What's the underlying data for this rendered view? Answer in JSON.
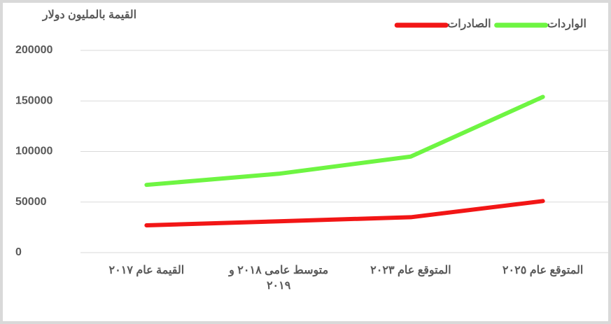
{
  "chart_data": {
    "type": "line",
    "title": "القيمة بالمليون دولار",
    "categories": [
      "القيمة عام ٢٠١٧",
      "متوسط عامى ٢٠١٨ و ٢٠١٩",
      "المتوقع عام ٢٠٢٣",
      "المتوقع عام ٢٠٢٥"
    ],
    "series": [
      {
        "name": "الواردات",
        "color": "#6ef542",
        "values": [
          67000,
          78000,
          95000,
          154000
        ]
      },
      {
        "name": "الصادرات",
        "color": "#f21616",
        "values": [
          27000,
          31000,
          35000,
          51000
        ]
      }
    ],
    "ylim": [
      0,
      200000
    ],
    "yticks": [
      0,
      50000,
      100000,
      150000,
      200000
    ],
    "grid": true,
    "legend": "top-right"
  }
}
